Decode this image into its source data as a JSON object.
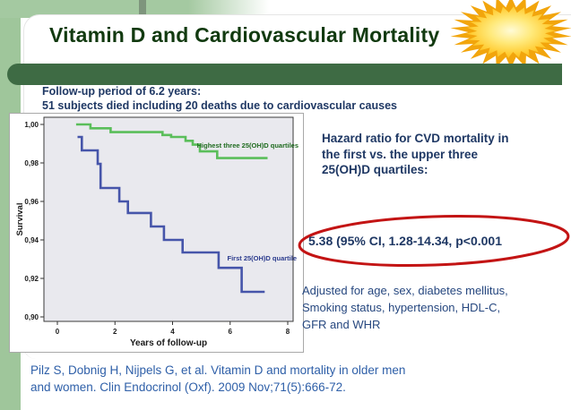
{
  "header": {
    "title": "Vitamin D and Cardiovascular Mortality"
  },
  "intro": {
    "lines": [
      "Follow-up period of 6.2 years:",
      "51 subjects died including 20 deaths due to cardiovascular causes"
    ]
  },
  "right_panel": {
    "hazard_heading_lines": [
      "Hazard ratio for CVD mortality in",
      "the first vs. the upper three",
      "25(OH)D quartiles:"
    ],
    "hazard_value": "5.38 (95% CI, 1.28-14.34, p<0.001",
    "adjusted_lines": [
      "Adjusted for age, sex, diabetes mellitus,",
      "Smoking status, hypertension, HDL-C,",
      "GFR and WHR"
    ]
  },
  "citation": {
    "lines": [
      "Pilz S, Dobnig H, Nijpels G, et al. Vitamin D and mortality in older men",
      "and women.  Clin Endocrinol (Oxf). 2009 Nov;71(5):666-72."
    ]
  },
  "icons": {
    "sun": "sunburst-icon",
    "highlight": "red-ellipse-annotation"
  },
  "colors": {
    "title_text": "#123A10",
    "body_text_navy": "#1F3864",
    "citation_blue": "#2E5FA8",
    "light_green_strip": "#9FC69B",
    "dark_green_bar": "#3E6B44",
    "sun_gold": "#F2A50C",
    "sun_light": "#FFF7C2",
    "highlight_red": "#C31414",
    "plot_background": "#E9E9EE",
    "curve_green": "#5ABE5A",
    "curve_blue": "#4655AA",
    "curve_green_label": "#1F6B1F",
    "curve_blue_label": "#2C3C8E"
  },
  "chart_data": {
    "type": "line",
    "subtype": "kaplan-meier-step",
    "title": "",
    "xlabel": "Years of follow-up",
    "ylabel": "Survival",
    "xlim": [
      0,
      8
    ],
    "ylim": [
      0.9,
      1.0
    ],
    "xticks": [
      0,
      2,
      4,
      6,
      8
    ],
    "yticks": [
      1.0,
      0.98,
      0.96,
      0.94,
      0.92,
      0.9
    ],
    "ytick_labels": [
      "1,00",
      "0,98",
      "0,96",
      "0,94",
      "0,92",
      "0,90"
    ],
    "grid": false,
    "legend_position": "inline-annotations",
    "series": [
      {
        "name": "Highest three 25(OH)D quartiles",
        "color": "#5ABE5A",
        "label_color": "#1F6B1F",
        "label_anchor": "end",
        "label_local": [
          322,
          38
        ],
        "points": [
          [
            0.65,
            1.0
          ],
          [
            1.15,
            0.998
          ],
          [
            1.85,
            0.996
          ],
          [
            3.65,
            0.9945
          ],
          [
            3.95,
            0.9935
          ],
          [
            4.45,
            0.9915
          ],
          [
            4.7,
            0.9895
          ],
          [
            4.95,
            0.986
          ],
          [
            5.55,
            0.9825
          ],
          [
            7.3,
            0.9825
          ]
        ]
      },
      {
        "name": "First 25(OH)D quartile",
        "color": "#4655AA",
        "label_color": "#2C3C8E",
        "label_anchor": "end",
        "label_local": [
          320,
          164
        ],
        "points": [
          [
            0.7,
            0.9935
          ],
          [
            0.85,
            0.9865
          ],
          [
            1.4,
            0.9795
          ],
          [
            1.5,
            0.967
          ],
          [
            2.15,
            0.96
          ],
          [
            2.45,
            0.954
          ],
          [
            3.25,
            0.947
          ],
          [
            3.7,
            0.94
          ],
          [
            4.35,
            0.9335
          ],
          [
            5.6,
            0.9255
          ],
          [
            6.4,
            0.913
          ],
          [
            7.2,
            0.913
          ]
        ]
      }
    ]
  }
}
